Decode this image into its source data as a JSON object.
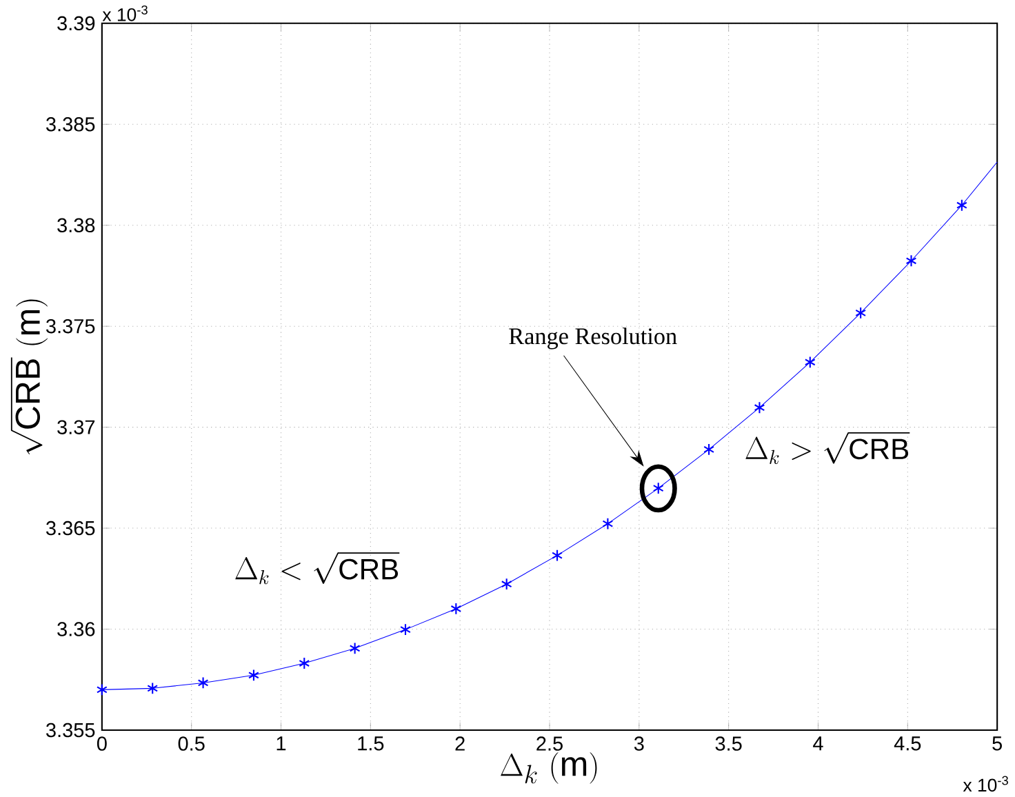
{
  "chart_data": {
    "type": "line",
    "xlabel": "\\Delta_k\\ (\\mathrm{m})",
    "ylabel": "\\sqrt{\\mathrm{CRB}}\\ (\\mathrm{m})",
    "series": [
      {
        "color": "#0000ff",
        "marker": "none",
        "x": [
          0,
          0.2825,
          0.565,
          0.8475,
          1.13,
          1.4125,
          1.695,
          1.9775,
          2.26,
          2.5425,
          2.825,
          3.1075,
          3.39,
          3.6725,
          3.955,
          4.2375,
          4.52,
          4.8025,
          5
        ],
        "values": [
          3.357,
          3.35707,
          3.35734,
          3.35772,
          3.35831,
          3.35905,
          3.35998,
          3.36101,
          3.36223,
          3.36365,
          3.36522,
          3.36698,
          3.3689,
          3.37097,
          3.37322,
          3.37566,
          3.37824,
          3.38099,
          3.38313
        ]
      },
      {
        "type": "scatter",
        "color": "#0000ff",
        "marker": "cross",
        "x": [
          0,
          0.2825,
          0.565,
          0.8475,
          1.13,
          1.4125,
          1.695,
          1.9775,
          2.26,
          2.5425,
          2.825,
          3.1075,
          3.39,
          3.6725,
          3.955,
          4.2375,
          4.52,
          4.8025
        ],
        "values": [
          3.357,
          3.35707,
          3.35734,
          3.35772,
          3.35831,
          3.35905,
          3.35998,
          3.36101,
          3.36223,
          3.36365,
          3.36522,
          3.36698,
          3.3689,
          3.37097,
          3.37322,
          3.37566,
          3.37824,
          3.38099
        ]
      }
    ],
    "xlim": [
      0,
      5
    ],
    "ylim": [
      3.355,
      3.39
    ],
    "xticks": [
      0,
      0.5,
      1,
      1.5,
      2,
      2.5,
      3,
      3.5,
      4,
      4.5,
      5
    ],
    "yticks": [
      3.355,
      3.36,
      3.365,
      3.37,
      3.375,
      3.38,
      3.385,
      3.39
    ],
    "grid": true,
    "annotations": [
      "x 10$^{-3}$",
      "x 10$^{-3}$",
      "\\Delta_k < \\sqrt{\\mathrm{CRB}}",
      "\\Delta_k > \\sqrt{\\mathrm{CRB}}",
      "Range Resolution"
    ]
  }
}
